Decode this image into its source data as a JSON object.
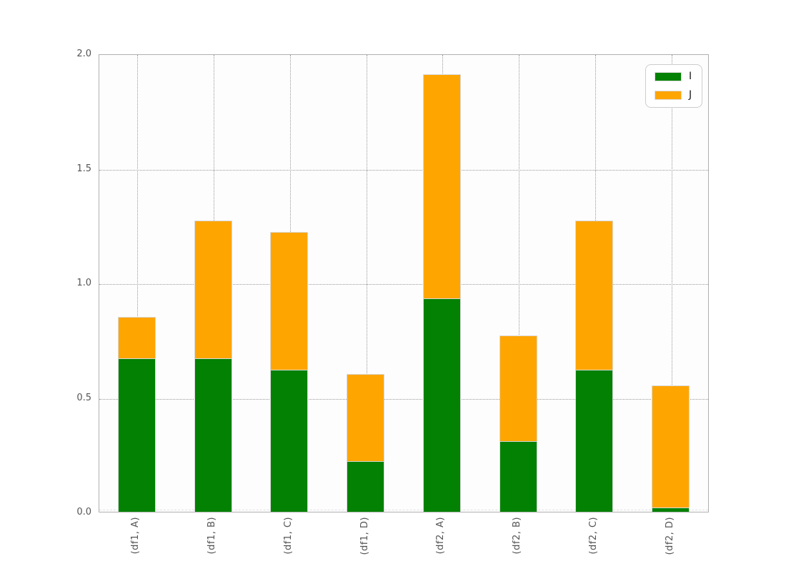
{
  "chart_data": {
    "type": "bar",
    "stacked": true,
    "title": "",
    "xlabel": "",
    "ylabel": "",
    "categories": [
      "(df1, A)",
      "(df1, B)",
      "(df1, C)",
      "(df1, D)",
      "(df2, A)",
      "(df2, B)",
      "(df2, C)",
      "(df2, D)"
    ],
    "series": [
      {
        "name": "I",
        "color": "#028102",
        "values": [
          0.67,
          0.67,
          0.62,
          0.22,
          0.93,
          0.31,
          0.62,
          0.02
        ]
      },
      {
        "name": "J",
        "color": "#ffa500",
        "values": [
          0.18,
          0.6,
          0.6,
          0.38,
          0.98,
          0.46,
          0.65,
          0.53
        ]
      }
    ],
    "stack_totals": [
      0.85,
      1.27,
      1.22,
      0.6,
      1.91,
      0.77,
      1.27,
      0.55
    ],
    "ylim": [
      0.0,
      2.0
    ],
    "yticks": [
      "0.0",
      "0.5",
      "1.0",
      "1.5",
      "2.0"
    ],
    "ytick_values": [
      0.0,
      0.5,
      1.0,
      1.5,
      2.0
    ],
    "grid": "dotted, horizontal and vertical, behind bars",
    "legend_position": "upper right"
  },
  "style": {
    "grid_color": "#999999",
    "spine_color": "#b0b0b0",
    "tick_label_color": "#555555",
    "axes_background": "#fdfdfd",
    "figure_background": "#ffffff",
    "bar_edge_color": "#d9d9d9"
  }
}
